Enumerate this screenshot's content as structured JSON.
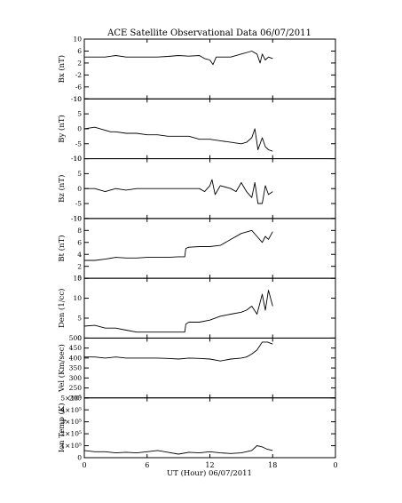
{
  "chart_data": {
    "type": "line",
    "title": "ACE Satellite Observational Data   06/07/2011",
    "xlabel": "UT (Hour)   06/07/2011",
    "x_ticks": [
      "0",
      "6",
      "12",
      "18",
      "0"
    ],
    "x_tick_values": [
      0,
      6,
      12,
      18,
      24
    ],
    "xlim": [
      0,
      24
    ],
    "panels": [
      {
        "name": "bx",
        "ylabel": "Bx (nT)",
        "ylim": [
          -10,
          10
        ],
        "y_ticks": [
          "10",
          "6",
          "2",
          "-2",
          "-6",
          "-10"
        ],
        "y_tick_values": [
          10,
          6,
          2,
          -2,
          -6,
          -10
        ],
        "series": {
          "x": [
            0,
            1,
            2,
            3,
            4,
            5,
            6,
            7,
            8,
            9,
            10,
            11,
            11.5,
            12,
            12.3,
            12.6,
            13,
            14,
            15,
            16,
            16.5,
            16.8,
            17,
            17.3,
            17.6,
            18
          ],
          "y": [
            4,
            4,
            4,
            4.5,
            4,
            4,
            4,
            4,
            4.2,
            4.5,
            4.3,
            4.5,
            3.5,
            3,
            1.5,
            4,
            4,
            4,
            5,
            6,
            5,
            2,
            5,
            3,
            4,
            3.5
          ]
        }
      },
      {
        "name": "by",
        "ylabel": "By (nT)",
        "ylim": [
          -10,
          10
        ],
        "y_ticks": [
          "10",
          "5",
          "0",
          "-5",
          "-10"
        ],
        "y_tick_values": [
          10,
          5,
          0,
          -5,
          -10
        ],
        "series": {
          "x": [
            0,
            1,
            2,
            2.5,
            3,
            4,
            5,
            6,
            7,
            8,
            9,
            10,
            11,
            12,
            13,
            14,
            15,
            15.5,
            16,
            16.3,
            16.6,
            17,
            17.3,
            17.6,
            18
          ],
          "y": [
            0,
            0.5,
            -0.5,
            -1,
            -1,
            -1.5,
            -1.5,
            -2,
            -2,
            -2.5,
            -2.5,
            -2.5,
            -3.5,
            -3.5,
            -4,
            -4.5,
            -5,
            -4.5,
            -3,
            0,
            -7,
            -3,
            -6,
            -7,
            -7.5
          ]
        }
      },
      {
        "name": "bz",
        "ylabel": "Bz (nT)",
        "ylim": [
          -10,
          10
        ],
        "y_ticks": [
          "10",
          "5",
          "0",
          "-5",
          "-10"
        ],
        "y_tick_values": [
          10,
          5,
          0,
          -5,
          -10
        ],
        "series": {
          "x": [
            0,
            1,
            2,
            3,
            4,
            5,
            6,
            7,
            8,
            9,
            10,
            11,
            11.5,
            12,
            12.2,
            12.5,
            13,
            14,
            14.5,
            15,
            15.5,
            16,
            16.3,
            16.6,
            17,
            17.3,
            17.6,
            18
          ],
          "y": [
            0,
            0,
            -1,
            0,
            -0.5,
            0,
            0,
            0,
            0,
            0,
            0,
            0,
            -1,
            1,
            3,
            -2,
            1,
            0,
            -1,
            2,
            -1,
            -3,
            2,
            -5,
            -5,
            1,
            -2,
            -1
          ]
        }
      },
      {
        "name": "bt",
        "ylabel": "Bt (nT)",
        "ylim": [
          0,
          10
        ],
        "y_ticks": [
          "10",
          "8",
          "6",
          "4",
          "2",
          "0"
        ],
        "y_tick_values": [
          10,
          8,
          6,
          4,
          2,
          0
        ],
        "series": {
          "x": [
            0,
            1,
            2,
            3,
            4,
            5,
            6,
            7,
            8,
            9,
            9.6,
            9.7,
            10,
            11,
            12,
            13,
            14,
            15,
            16,
            16.5,
            17,
            17.3,
            17.6,
            18
          ],
          "y": [
            3,
            3,
            3.2,
            3.5,
            3.4,
            3.4,
            3.5,
            3.5,
            3.5,
            3.6,
            3.6,
            5,
            5.2,
            5.3,
            5.3,
            5.5,
            6.5,
            7.5,
            8,
            7,
            6,
            7,
            6.5,
            7.8
          ]
        }
      },
      {
        "name": "den",
        "ylabel": "Den (1/cc)",
        "ylim": [
          0,
          15
        ],
        "y_ticks": [
          "15",
          "10",
          "5",
          "0"
        ],
        "y_tick_values": [
          15,
          10,
          5,
          0
        ],
        "series": {
          "x": [
            0,
            1,
            2,
            3,
            4,
            5,
            6,
            7,
            8,
            9,
            9.6,
            9.7,
            10,
            11,
            12,
            13,
            14,
            15,
            15.5,
            16,
            16.5,
            17,
            17.3,
            17.6,
            18
          ],
          "y": [
            3,
            3.2,
            2.5,
            2.5,
            2,
            1.5,
            1.5,
            1.5,
            1.5,
            1.5,
            1.5,
            3.5,
            4,
            4,
            4.5,
            5.5,
            6,
            6.5,
            7,
            8,
            6,
            11,
            7,
            12,
            8
          ]
        }
      },
      {
        "name": "vel",
        "ylabel": "Vel (Km/sec)",
        "ylim": [
          200,
          500
        ],
        "y_ticks": [
          "500",
          "450",
          "400",
          "350",
          "300",
          "250",
          "200"
        ],
        "y_tick_values": [
          500,
          450,
          400,
          350,
          300,
          250,
          200
        ],
        "series": {
          "x": [
            0,
            1,
            2,
            3,
            4,
            5,
            6,
            7,
            8,
            9,
            10,
            11,
            12,
            13,
            14,
            15,
            15.5,
            16,
            16.5,
            17,
            17.5,
            18
          ],
          "y": [
            405,
            405,
            400,
            405,
            400,
            400,
            400,
            400,
            398,
            395,
            400,
            398,
            395,
            385,
            395,
            400,
            405,
            420,
            440,
            480,
            480,
            470
          ]
        }
      },
      {
        "name": "temp",
        "ylabel": "Ion Temp (K)",
        "ylim": [
          0,
          500000
        ],
        "y_ticks": [
          "5×10⁵",
          "4×10⁵",
          "3×10⁵",
          "2×10⁵",
          "1×10⁵",
          "0"
        ],
        "y_tick_values": [
          500000,
          400000,
          300000,
          200000,
          100000,
          0
        ],
        "series": {
          "x": [
            0,
            1,
            2,
            3,
            4,
            5,
            6,
            7,
            8,
            9,
            10,
            11,
            12,
            13,
            14,
            15,
            16,
            16.5,
            17,
            17.5,
            18
          ],
          "y": [
            60000,
            50000,
            50000,
            40000,
            45000,
            40000,
            50000,
            60000,
            45000,
            30000,
            45000,
            40000,
            50000,
            40000,
            35000,
            40000,
            60000,
            100000,
            90000,
            70000,
            60000
          ]
        }
      }
    ]
  }
}
